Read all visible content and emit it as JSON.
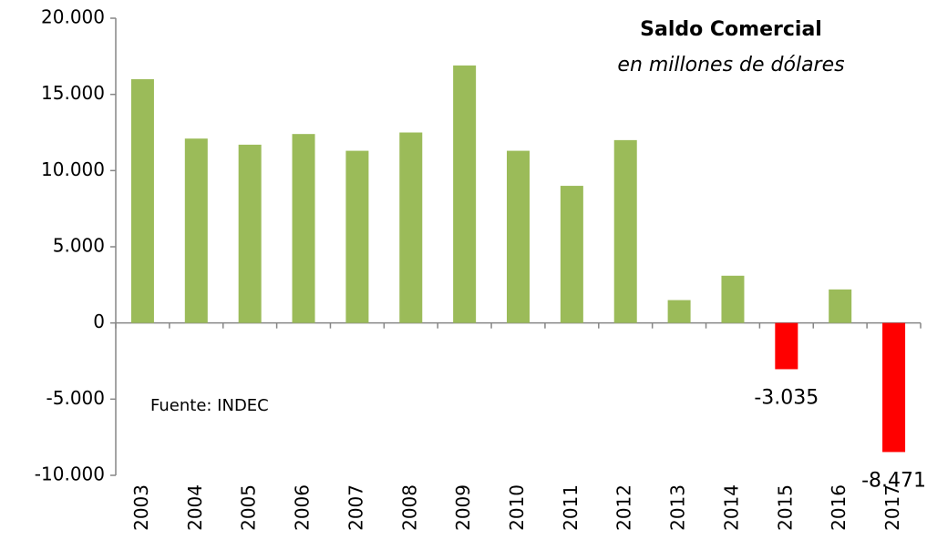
{
  "chart_data": {
    "type": "bar",
    "title": "Saldo Comercial",
    "subtitle": "en millones de dólares",
    "annotation": "Fuente: INDEC",
    "categories": [
      "2003",
      "2004",
      "2005",
      "2006",
      "2007",
      "2008",
      "2009",
      "2010",
      "2011",
      "2012",
      "2013",
      "2014",
      "2015",
      "2016",
      "2017"
    ],
    "values": [
      16000,
      12100,
      11700,
      12400,
      11300,
      12500,
      16900,
      11300,
      9000,
      12000,
      1500,
      3100,
      -3035,
      2200,
      -8471
    ],
    "value_labels": [
      null,
      null,
      null,
      null,
      null,
      null,
      null,
      null,
      null,
      null,
      null,
      null,
      "-3.035",
      null,
      "-8.471"
    ],
    "color": "#9bbb59",
    "negative_color": "#ff0000",
    "ylim": [
      -10000,
      20000
    ],
    "yticks": [
      {
        "value": -10000,
        "label": "-10.000"
      },
      {
        "value": -5000,
        "label": "-5.000"
      },
      0,
      {
        "value": 5000,
        "label": "5.000"
      },
      {
        "value": 10000,
        "label": "10.000"
      },
      {
        "value": 15000,
        "label": "15.000"
      },
      {
        "value": 20000,
        "label": "20.000"
      }
    ],
    "grid": false
  }
}
